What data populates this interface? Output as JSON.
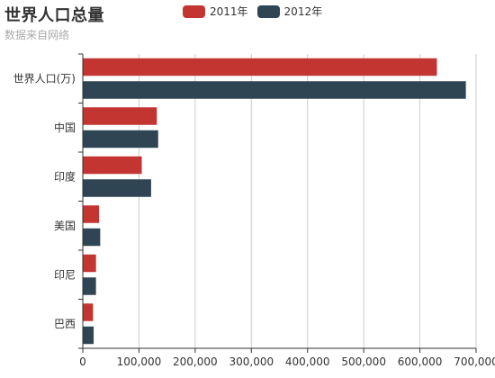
{
  "chart_data": {
    "type": "bar",
    "orientation": "horizontal",
    "title": "世界人口总量",
    "subtitle": "数据来自网络",
    "categories": [
      "巴西",
      "印尼",
      "美国",
      "印度",
      "中国",
      "世界人口(万)"
    ],
    "series": [
      {
        "name": "2011年",
        "color": "#c23531",
        "values": [
          18203,
          23489,
          29034,
          104970,
          131744,
          630230
        ]
      },
      {
        "name": "2012年",
        "color": "#2f4554",
        "values": [
          19325,
          23438,
          31000,
          121594,
          134141,
          681807
        ]
      }
    ],
    "x_ticks": [
      "0",
      "100,000",
      "200,000",
      "300,000",
      "400,000",
      "500,000",
      "600,000",
      "700,000"
    ],
    "xlim": [
      0,
      700000
    ],
    "grid": "vertical",
    "legend": "top"
  }
}
